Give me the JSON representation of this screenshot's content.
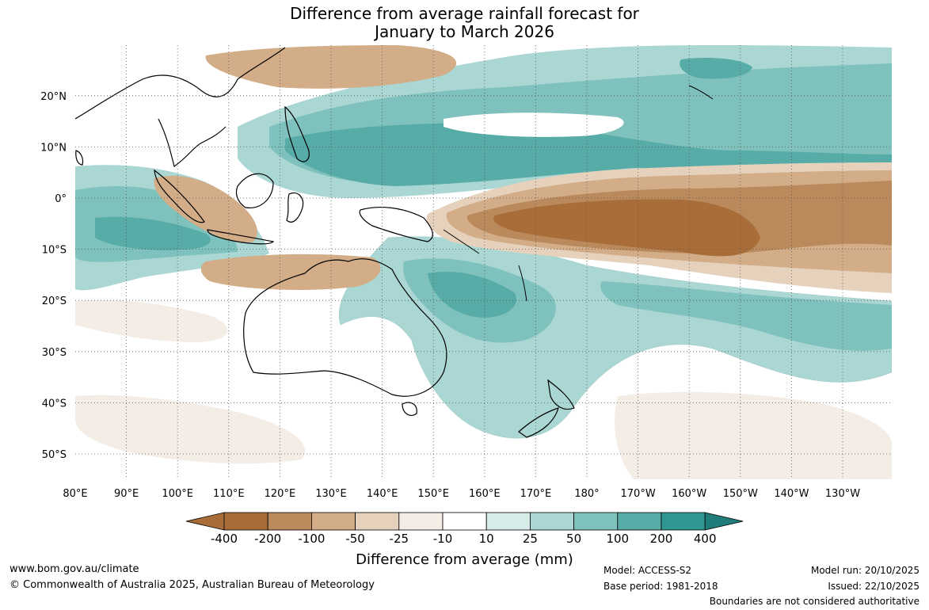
{
  "title": {
    "line1": "Difference from average rainfall forecast for",
    "line2": "January to March 2026"
  },
  "map": {
    "lon_range": [
      80,
      240
    ],
    "lat_range": [
      -55,
      30
    ],
    "lon_ticks": [
      {
        "value": 80,
        "label": "80°E"
      },
      {
        "value": 90,
        "label": "90°E"
      },
      {
        "value": 100,
        "label": "100°E"
      },
      {
        "value": 110,
        "label": "110°E"
      },
      {
        "value": 120,
        "label": "120°E"
      },
      {
        "value": 130,
        "label": "130°E"
      },
      {
        "value": 140,
        "label": "140°E"
      },
      {
        "value": 150,
        "label": "150°E"
      },
      {
        "value": 160,
        "label": "160°E"
      },
      {
        "value": 170,
        "label": "170°E"
      },
      {
        "value": 180,
        "label": "180°"
      },
      {
        "value": 190,
        "label": "170°W"
      },
      {
        "value": 200,
        "label": "160°W"
      },
      {
        "value": 210,
        "label": "150°W"
      },
      {
        "value": 220,
        "label": "140°W"
      },
      {
        "value": 230,
        "label": "130°W"
      }
    ],
    "lat_ticks": [
      {
        "value": 20,
        "label": "20°N"
      },
      {
        "value": 10,
        "label": "10°N"
      },
      {
        "value": 0,
        "label": "0°"
      },
      {
        "value": -10,
        "label": "10°S"
      },
      {
        "value": -20,
        "label": "20°S"
      },
      {
        "value": -30,
        "label": "30°S"
      },
      {
        "value": -40,
        "label": "40°S"
      },
      {
        "value": -50,
        "label": "50°S"
      }
    ]
  },
  "colorbar": {
    "labels": [
      "-400",
      "-200",
      "-100",
      "-50",
      "-25",
      "-10",
      "10",
      "25",
      "50",
      "100",
      "200",
      "400"
    ],
    "colors": [
      "#a86d38",
      "#ba8a5c",
      "#d2ad88",
      "#e6d2bc",
      "#f3ede6",
      "#ffffff",
      "#d7ebe9",
      "#aad6d3",
      "#7fc1bc",
      "#58aca7",
      "#319793",
      "#207d79"
    ],
    "title": "Difference from average (mm)"
  },
  "footer": {
    "url": "www.bom.gov.au/climate",
    "copyright": "© Commonwealth of Australia 2025, Australian Bureau of Meteorology",
    "model": "Model: ACCESS-S2",
    "base_period": "Base period: 1981-2018",
    "model_run": "Model run: 20/10/2025",
    "issued": "Issued: 22/10/2025",
    "disclaimer": "Boundaries are not considered authoritative"
  }
}
